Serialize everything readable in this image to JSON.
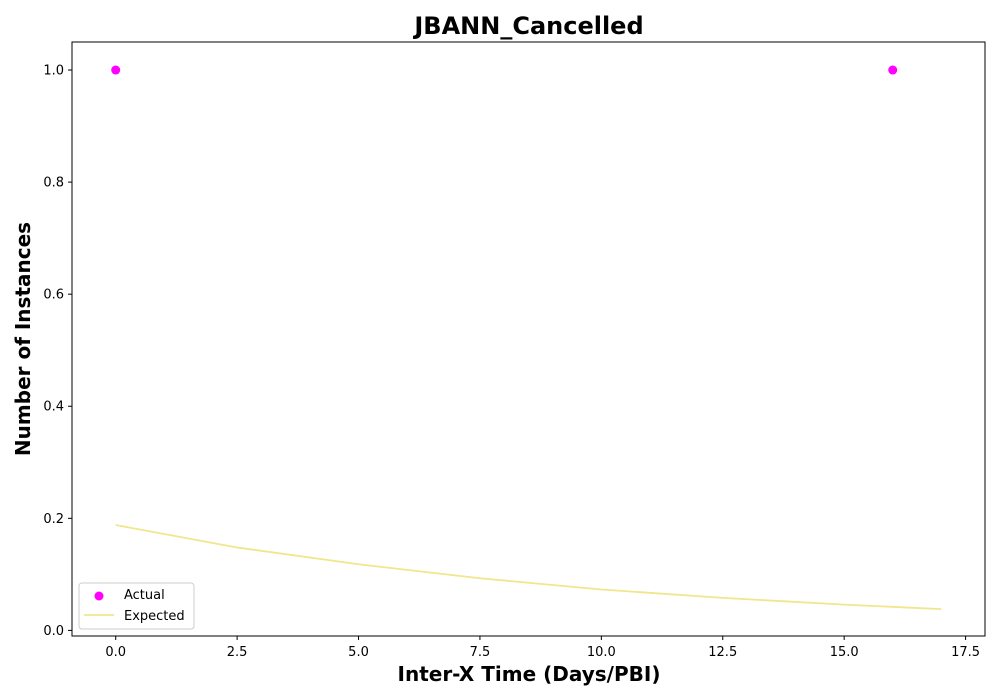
{
  "chart_data": {
    "type": "scatter",
    "title": "JBANN_Cancelled",
    "xlabel": "Inter-X Time (Days/PBI)",
    "ylabel": "Number of Instances",
    "xlim": [
      -0.9,
      17.9
    ],
    "ylim": [
      -0.01,
      1.05
    ],
    "xticks": [
      0.0,
      2.5,
      5.0,
      7.5,
      10.0,
      12.5,
      15.0,
      17.5
    ],
    "yticks": [
      0.0,
      0.2,
      0.4,
      0.6,
      0.8,
      1.0
    ],
    "legend_position": "lower-left",
    "grid": false,
    "series": [
      {
        "name": "Actual",
        "kind": "scatter",
        "color": "#ff00ff",
        "points": [
          {
            "x": 0.0,
            "y": 1.0
          },
          {
            "x": 16.0,
            "y": 1.0
          }
        ]
      },
      {
        "name": "Expected",
        "kind": "line",
        "color": "#f0e68c",
        "points": [
          {
            "x": 0.0,
            "y": 0.188
          },
          {
            "x": 2.5,
            "y": 0.148
          },
          {
            "x": 5.0,
            "y": 0.118
          },
          {
            "x": 7.5,
            "y": 0.093
          },
          {
            "x": 10.0,
            "y": 0.073
          },
          {
            "x": 12.5,
            "y": 0.058
          },
          {
            "x": 15.0,
            "y": 0.046
          },
          {
            "x": 17.0,
            "y": 0.038
          }
        ]
      }
    ]
  }
}
